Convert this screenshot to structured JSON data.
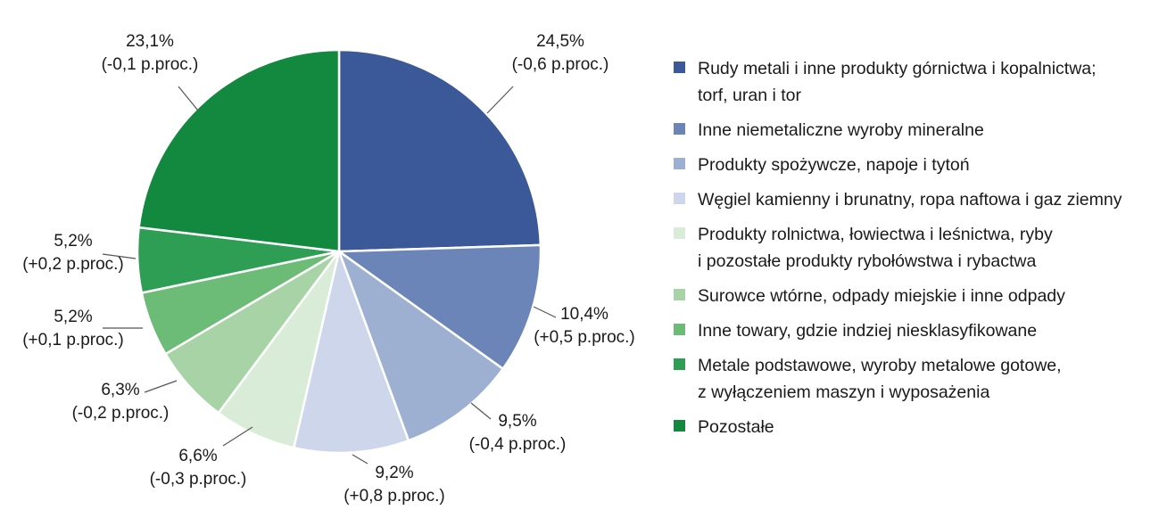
{
  "chart_data": {
    "type": "pie",
    "title": "",
    "slices": [
      {
        "value": 24.5,
        "label": "24,5%",
        "change": "(-0,6 p.proc.)",
        "color": "#3b5998",
        "legend": [
          "Rudy metali i inne produkty górnictwa i kopalnictwa;",
          "torf, uran i tor"
        ]
      },
      {
        "value": 10.4,
        "label": "10,4%",
        "change": "(+0,5 p.proc.)",
        "color": "#6b85b8",
        "legend": [
          "Inne niemetaliczne wyroby mineralne"
        ]
      },
      {
        "value": 9.5,
        "label": "9,5%",
        "change": "(-0,4 p.proc.)",
        "color": "#9db0d2",
        "legend": [
          "Produkty spożywcze, napoje i tytoń"
        ]
      },
      {
        "value": 9.2,
        "label": "9,2%",
        "change": "(+0,8 p.proc.)",
        "color": "#cdd6ea",
        "legend": [
          "Węgiel kamienny i brunatny, ropa naftowa i gaz ziemny"
        ]
      },
      {
        "value": 6.6,
        "label": "6,6%",
        "change": "(-0,3 p.proc.)",
        "color": "#d9ecd7",
        "legend": [
          "Produkty rolnictwa, łowiectwa i leśnictwa, ryby",
          "i pozostałe produkty rybołówstwa i rybactwa"
        ]
      },
      {
        "value": 6.3,
        "label": "6,3%",
        "change": "(-0,2 p.proc.)",
        "color": "#a7d3a6",
        "legend": [
          "Surowce wtórne, odpady miejskie i inne odpady"
        ]
      },
      {
        "value": 5.2,
        "label": "5,2%",
        "change": "(+0,1 p.proc.)",
        "color": "#6cbb76",
        "legend": [
          "Inne towary, gdzie indziej niesklasyfikowane"
        ]
      },
      {
        "value": 5.2,
        "label": "5,2%",
        "change": "(+0,2 p.proc.)",
        "color": "#2e9e55",
        "legend": [
          "Metale podstawowe, wyroby metalowe gotowe,",
          "z wyłączeniem maszyn i wyposażenia"
        ]
      },
      {
        "value": 23.1,
        "label": "23,1%",
        "change": "(-0,1 p.proc.)",
        "color": "#13883f",
        "legend": [
          "Pozostałe"
        ]
      }
    ]
  }
}
